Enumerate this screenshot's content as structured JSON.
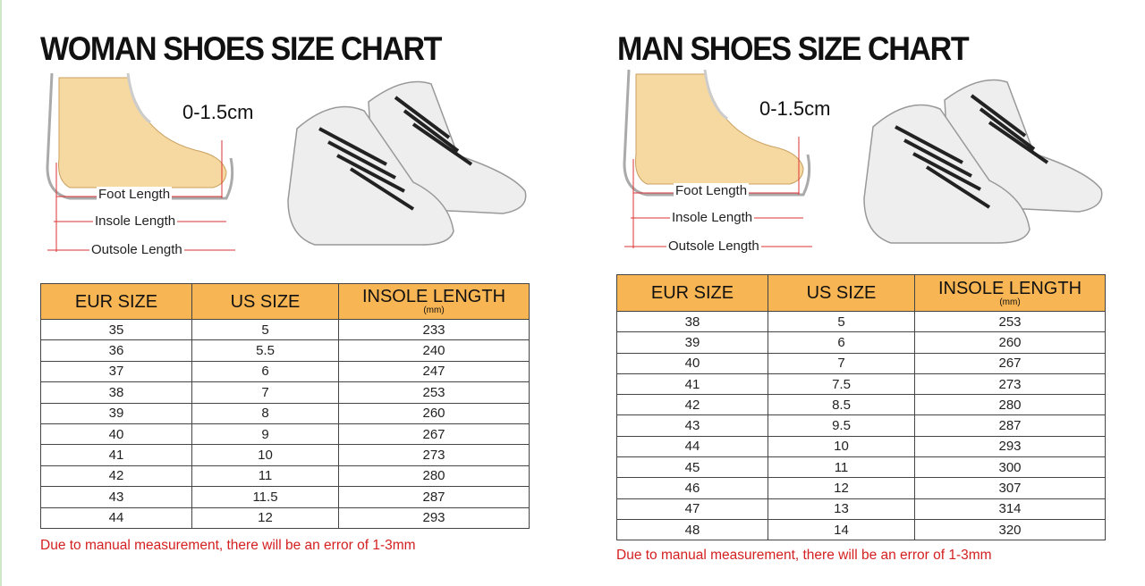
{
  "colors": {
    "header_bg": "#f8b553",
    "note": "#d42020",
    "foot": "#f6d9a0"
  },
  "women": {
    "title": "WOMAN SHOES SIZE CHART",
    "gap_label": "0-1.5cm",
    "labels": {
      "foot": "Foot Length",
      "insole": "Insole Length",
      "outsole": "Outsole Length"
    },
    "table": {
      "headers": [
        "EUR SIZE",
        "US SIZE",
        "INSOLE  LENGTH"
      ],
      "unit": "(mm)",
      "rows": [
        [
          "35",
          "5",
          "233"
        ],
        [
          "36",
          "5.5",
          "240"
        ],
        [
          "37",
          "6",
          "247"
        ],
        [
          "38",
          "7",
          "253"
        ],
        [
          "39",
          "8",
          "260"
        ],
        [
          "40",
          "9",
          "267"
        ],
        [
          "41",
          "10",
          "273"
        ],
        [
          "42",
          "11",
          "280"
        ],
        [
          "43",
          "11.5",
          "287"
        ],
        [
          "44",
          "12",
          "293"
        ]
      ]
    },
    "note": "Due to manual measurement, there will be an error of 1-3mm"
  },
  "men": {
    "title": "MAN SHOES SIZE CHART",
    "gap_label": "0-1.5cm",
    "labels": {
      "foot": "Foot Length",
      "insole": "Insole Length",
      "outsole": "Outsole Length"
    },
    "table": {
      "headers": [
        "EUR SIZE",
        "US SIZE",
        "INSOLE  LENGTH"
      ],
      "unit": "(mm)",
      "rows": [
        [
          "38",
          "5",
          "253"
        ],
        [
          "39",
          "6",
          "260"
        ],
        [
          "40",
          "7",
          "267"
        ],
        [
          "41",
          "7.5",
          "273"
        ],
        [
          "42",
          "8.5",
          "280"
        ],
        [
          "43",
          "9.5",
          "287"
        ],
        [
          "44",
          "10",
          "293"
        ],
        [
          "45",
          "11",
          "300"
        ],
        [
          "46",
          "12",
          "307"
        ],
        [
          "47",
          "13",
          "314"
        ],
        [
          "48",
          "14",
          "320"
        ]
      ]
    },
    "note": "Due to manual measurement, there will be an error of 1-3mm"
  }
}
